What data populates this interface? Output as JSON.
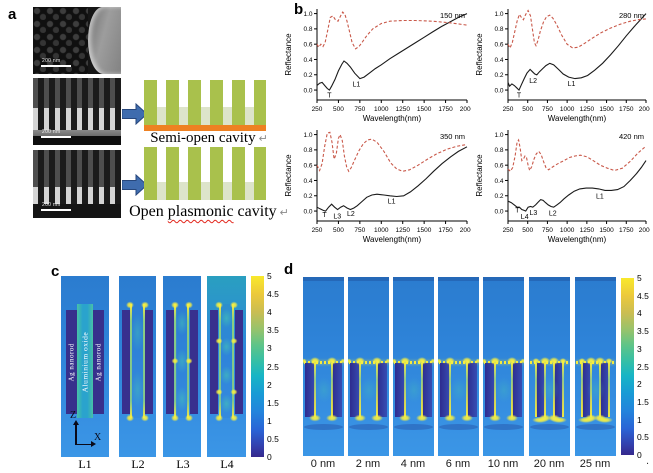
{
  "panels": {
    "a": {
      "letter": "a",
      "scale_bar": "200 nm",
      "semi_open_caption": "Semi-open cavity",
      "open_caption_pre": "Open",
      "open_caption_word": "plasmonic",
      "open_caption_post": "cavity",
      "return_mark": "↵"
    },
    "b": {
      "letter": "b"
    },
    "c": {
      "letter": "c",
      "map_labels": [
        "L1",
        "L2",
        "L3",
        "L4"
      ],
      "rod_label_left": "Ag nanorod",
      "rod_label_center": "Aluminium oxide",
      "rod_label_right": "Ag nanorod",
      "axis_vertical": "Z",
      "axis_horizontal": "X",
      "colorbar_ticks": [
        "5",
        "4.5",
        "4",
        "3.5",
        "3",
        "2.5",
        "2",
        "1.5",
        "1",
        "0.5",
        "0"
      ]
    },
    "d": {
      "letter": "d",
      "map_labels": [
        "0 nm",
        "2 nm",
        "4 nm",
        "6 nm",
        "10 nm",
        "20 nm",
        "25 nm"
      ],
      "colorbar_ticks": [
        "5",
        "4.5",
        "4",
        "3.5",
        "3",
        "2.5",
        "2",
        "1.5",
        "1",
        "0.5",
        "0"
      ],
      "trailing_period": "."
    }
  },
  "chart_data": [
    {
      "type": "line",
      "title": "150 nm",
      "xlabel": "Wavelength(nm)",
      "ylabel": "Reflectance",
      "xlim": [
        250,
        2000
      ],
      "ylim": [
        0,
        1
      ],
      "ylim_draw": [
        -0.13,
        1.06
      ],
      "xticks": [
        250,
        500,
        750,
        1000,
        1250,
        1500,
        1750,
        2000
      ],
      "yticks": [
        "0.0",
        "0.2",
        "0.4",
        "0.6",
        "0.8",
        "1.0"
      ],
      "series": [
        {
          "name": "black-solid",
          "color": "#1a1a1a",
          "dash": "",
          "x": [
            250,
            280,
            310,
            340,
            370,
            395,
            420,
            460,
            500,
            540,
            565,
            600,
            640,
            690,
            750,
            800,
            860,
            930,
            1000,
            1100,
            1200,
            1300,
            1400,
            1500,
            1600,
            1700,
            1800,
            1900,
            2000
          ],
          "y": [
            0.06,
            0.09,
            0.1,
            0.06,
            0.02,
            0.0,
            0.05,
            0.14,
            0.25,
            0.34,
            0.38,
            0.35,
            0.3,
            0.22,
            0.15,
            0.17,
            0.22,
            0.28,
            0.33,
            0.41,
            0.48,
            0.55,
            0.62,
            0.69,
            0.76,
            0.83,
            0.89,
            0.95,
            1.0
          ]
        },
        {
          "name": "red-dashed",
          "color": "#c9594a",
          "dash": "3,2",
          "x": [
            250,
            270,
            295,
            320,
            345,
            375,
            405,
            435,
            465,
            495,
            525,
            550,
            575,
            600,
            630,
            660,
            700,
            740,
            780,
            830,
            900,
            1000,
            1100,
            1250,
            1400,
            1600,
            1800,
            2000
          ],
          "y": [
            0.6,
            0.56,
            0.6,
            0.57,
            0.62,
            0.78,
            0.95,
            0.97,
            0.92,
            0.9,
            0.97,
            1.02,
            0.99,
            0.9,
            0.76,
            0.62,
            0.54,
            0.57,
            0.63,
            0.71,
            0.8,
            0.87,
            0.9,
            0.91,
            0.91,
            0.9,
            0.88,
            0.85
          ]
        }
      ],
      "annotations": [
        {
          "text": "T",
          "x": 395,
          "y": -0.095
        },
        {
          "text": "L1",
          "x": 710,
          "y": 0.045
        }
      ]
    },
    {
      "type": "line",
      "title": "280 nm",
      "xlabel": "Wavelength(nm)",
      "ylabel": "Reflectance",
      "xlim": [
        250,
        2000
      ],
      "ylim": [
        0,
        1
      ],
      "ylim_draw": [
        -0.13,
        1.06
      ],
      "xticks": [
        250,
        500,
        750,
        1000,
        1250,
        1500,
        1750,
        2000
      ],
      "yticks": [
        "0.0",
        "0.2",
        "0.4",
        "0.6",
        "0.8",
        "1.0"
      ],
      "series": [
        {
          "name": "black-solid",
          "color": "#1a1a1a",
          "dash": "",
          "x": [
            250,
            270,
            300,
            330,
            360,
            390,
            420,
            455,
            490,
            530,
            560,
            590,
            615,
            650,
            690,
            730,
            780,
            830,
            890,
            950,
            1020,
            1100,
            1180,
            1260,
            1350,
            1450,
            1550,
            1650,
            1750,
            1850,
            1930,
            2000
          ],
          "y": [
            0.1,
            0.05,
            0.08,
            0.06,
            0.03,
            0.0,
            0.07,
            0.15,
            0.22,
            0.27,
            0.24,
            0.21,
            0.2,
            0.24,
            0.28,
            0.32,
            0.35,
            0.33,
            0.27,
            0.21,
            0.17,
            0.15,
            0.16,
            0.19,
            0.26,
            0.35,
            0.46,
            0.58,
            0.71,
            0.83,
            0.92,
            1.0
          ]
        },
        {
          "name": "red-dashed",
          "color": "#c9594a",
          "dash": "3,2",
          "x": [
            250,
            275,
            305,
            335,
            365,
            395,
            420,
            445,
            475,
            505,
            535,
            560,
            585,
            605,
            630,
            660,
            700,
            740,
            780,
            820,
            870,
            930,
            1000,
            1070,
            1140,
            1220,
            1320,
            1430,
            1550,
            1670,
            1800,
            1900,
            2000
          ],
          "y": [
            0.6,
            0.55,
            0.62,
            0.76,
            0.9,
            0.99,
            0.95,
            0.92,
            0.99,
            1.04,
            0.97,
            0.8,
            0.62,
            0.58,
            0.65,
            0.77,
            0.89,
            0.96,
            0.98,
            0.94,
            0.85,
            0.72,
            0.6,
            0.55,
            0.56,
            0.61,
            0.68,
            0.75,
            0.81,
            0.86,
            0.9,
            0.92,
            0.93
          ]
        }
      ],
      "annotations": [
        {
          "text": "T",
          "x": 390,
          "y": -0.095
        },
        {
          "text": "L2",
          "x": 568,
          "y": 0.09
        },
        {
          "text": "L1",
          "x": 1055,
          "y": 0.05
        }
      ]
    },
    {
      "type": "line",
      "title": "350 nm",
      "xlabel": "Wavelength(nm)",
      "ylabel": "Reflectance",
      "xlim": [
        250,
        2000
      ],
      "ylim": [
        0,
        1
      ],
      "ylim_draw": [
        -0.13,
        1.06
      ],
      "xticks": [
        250,
        500,
        750,
        1000,
        1250,
        1500,
        1750,
        2000
      ],
      "yticks": [
        "0.0",
        "0.2",
        "0.4",
        "0.6",
        "0.8",
        "1.0"
      ],
      "series": [
        {
          "name": "black-solid",
          "color": "#1a1a1a",
          "dash": "",
          "x": [
            250,
            285,
            320,
            350,
            385,
            420,
            455,
            490,
            525,
            560,
            600,
            640,
            680,
            720,
            770,
            830,
            890,
            950,
            1030,
            1100,
            1180,
            1260,
            1340,
            1430,
            1520,
            1610,
            1710,
            1810,
            1900,
            2000
          ],
          "y": [
            0.05,
            0.03,
            0.01,
            0.0,
            0.05,
            0.09,
            0.05,
            0.02,
            0.05,
            0.07,
            0.04,
            0.02,
            0.04,
            0.07,
            0.12,
            0.18,
            0.21,
            0.22,
            0.21,
            0.2,
            0.19,
            0.2,
            0.25,
            0.33,
            0.42,
            0.52,
            0.62,
            0.71,
            0.78,
            0.84
          ]
        },
        {
          "name": "red-dashed",
          "color": "#c9594a",
          "dash": "3,2",
          "x": [
            250,
            280,
            310,
            340,
            370,
            400,
            425,
            450,
            475,
            500,
            520,
            545,
            570,
            595,
            620,
            650,
            690,
            740,
            790,
            840,
            890,
            950,
            1030,
            1110,
            1180,
            1250,
            1330,
            1430,
            1540,
            1650,
            1770,
            1890,
            2000
          ],
          "y": [
            0.6,
            0.53,
            0.62,
            0.85,
            1.02,
            1.03,
            0.9,
            0.68,
            0.75,
            0.95,
            1.0,
            0.92,
            0.72,
            0.58,
            0.52,
            0.57,
            0.67,
            0.79,
            0.88,
            0.93,
            0.94,
            0.9,
            0.78,
            0.63,
            0.55,
            0.52,
            0.54,
            0.6,
            0.68,
            0.75,
            0.81,
            0.85,
            0.87
          ]
        }
      ],
      "annotations": [
        {
          "text": "T",
          "x": 338,
          "y": -0.075
        },
        {
          "text": "L3",
          "x": 487,
          "y": -0.1
        },
        {
          "text": "L2",
          "x": 645,
          "y": -0.062
        },
        {
          "text": "L1",
          "x": 1120,
          "y": 0.1
        }
      ]
    },
    {
      "type": "line",
      "title": "420 nm",
      "xlabel": "Wavelength(nm)",
      "ylabel": "Reflectance",
      "xlim": [
        250,
        2000
      ],
      "ylim": [
        0,
        1
      ],
      "ylim_draw": [
        -0.13,
        1.06
      ],
      "xticks": [
        250,
        500,
        750,
        1000,
        1250,
        1500,
        1750,
        2000
      ],
      "yticks": [
        "0.0",
        "0.2",
        "0.4",
        "0.6",
        "0.8",
        "1.0"
      ],
      "series": [
        {
          "name": "black-solid",
          "color": "#1a1a1a",
          "dash": "",
          "x": [
            250,
            290,
            330,
            365,
            395,
            425,
            450,
            475,
            505,
            535,
            565,
            600,
            635,
            665,
            695,
            725,
            760,
            795,
            830,
            870,
            910,
            960,
            1020,
            1090,
            1160,
            1240,
            1320,
            1400,
            1480,
            1560,
            1640,
            1720,
            1800,
            1880,
            1940,
            2000
          ],
          "y": [
            0.13,
            0.11,
            0.08,
            0.05,
            0.05,
            0.02,
            0.01,
            0.0,
            0.05,
            0.06,
            0.05,
            0.08,
            0.12,
            0.15,
            0.14,
            0.11,
            0.08,
            0.06,
            0.05,
            0.08,
            0.11,
            0.16,
            0.21,
            0.26,
            0.29,
            0.3,
            0.3,
            0.29,
            0.27,
            0.27,
            0.28,
            0.32,
            0.4,
            0.49,
            0.57,
            0.66
          ]
        },
        {
          "name": "red-dashed",
          "color": "#c9594a",
          "dash": "3,2",
          "x": [
            250,
            280,
            310,
            340,
            365,
            385,
            405,
            425,
            445,
            465,
            485,
            505,
            525,
            550,
            580,
            610,
            640,
            670,
            700,
            730,
            765,
            805,
            850,
            900,
            960,
            1030,
            1100,
            1170,
            1250,
            1330,
            1420,
            1510,
            1600,
            1700,
            1800,
            1900,
            2000
          ],
          "y": [
            0.55,
            0.52,
            0.57,
            0.72,
            0.9,
            0.93,
            0.82,
            0.66,
            0.68,
            0.72,
            0.7,
            0.6,
            0.53,
            0.58,
            0.68,
            0.75,
            0.78,
            0.74,
            0.65,
            0.57,
            0.54,
            0.57,
            0.6,
            0.63,
            0.66,
            0.7,
            0.72,
            0.73,
            0.71,
            0.66,
            0.6,
            0.56,
            0.53,
            0.56,
            0.65,
            0.76,
            0.85
          ]
        }
      ],
      "annotations": [
        {
          "text": "T",
          "x": 368,
          "y": -0.02
        },
        {
          "text": "L4",
          "x": 462,
          "y": -0.105
        },
        {
          "text": "L3",
          "x": 572,
          "y": -0.05
        },
        {
          "text": "L2",
          "x": 818,
          "y": -0.055
        },
        {
          "text": "L1",
          "x": 1415,
          "y": 0.165
        }
      ]
    }
  ]
}
